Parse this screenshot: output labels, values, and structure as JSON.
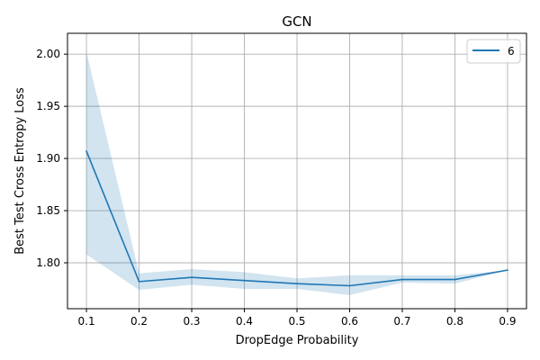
{
  "chart_data": {
    "type": "line",
    "title": "GCN",
    "xlabel": "DropEdge Probability",
    "ylabel": "Best Test Cross Entropy Loss",
    "xlim": [
      0.064,
      0.936
    ],
    "ylim": [
      1.756,
      2.02
    ],
    "xticks": [
      0.1,
      0.2,
      0.3,
      0.4,
      0.5,
      0.6,
      0.7,
      0.8,
      0.9
    ],
    "xtick_labels": [
      "0.1",
      "0.2",
      "0.3",
      "0.4",
      "0.5",
      "0.6",
      "0.7",
      "0.8",
      "0.9"
    ],
    "yticks": [
      1.8,
      1.85,
      1.9,
      1.95,
      2.0
    ],
    "ytick_labels": [
      "1.80",
      "1.85",
      "1.90",
      "1.95",
      "2.00"
    ],
    "grid": true,
    "legend_position": "top-right",
    "series": [
      {
        "name": "6",
        "color": "#1f77b4",
        "band_color": "#1f77b4",
        "x": [
          0.1,
          0.2,
          0.3,
          0.4,
          0.5,
          0.6,
          0.7,
          0.8,
          0.9
        ],
        "y": [
          1.907,
          1.782,
          1.786,
          1.783,
          1.78,
          1.778,
          1.784,
          1.784,
          1.793
        ],
        "upper": [
          2.002,
          1.79,
          1.794,
          1.791,
          1.785,
          1.788,
          1.788,
          1.788,
          1.793
        ],
        "lower": [
          1.808,
          1.774,
          1.779,
          1.775,
          1.775,
          1.769,
          1.781,
          1.78,
          1.793
        ]
      }
    ]
  }
}
